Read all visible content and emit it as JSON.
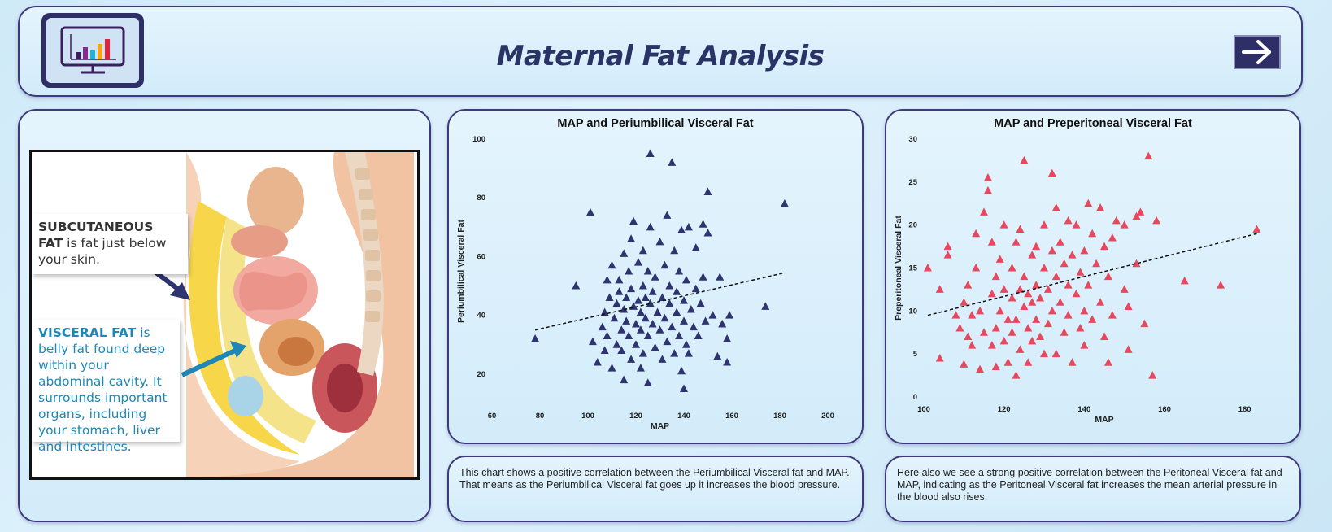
{
  "header": {
    "title": "Maternal Fat Analysis",
    "logo_icon": "monitor-bar-chart-icon",
    "next_icon": "arrow-right-icon"
  },
  "illustration": {
    "callout1_title": "SUBCUTANEOUS FAT",
    "callout1_text": "is fat just below your skin.",
    "callout2_title": "VISCERAL FAT",
    "callout2_text": "is belly fat found deep within your abdominal cavity. It surrounds important organs, including your stomach, liver and intestines."
  },
  "chart_data": [
    {
      "type": "scatter",
      "title": "MAP and Periumbilical Visceral Fat",
      "xlabel": "MAP",
      "ylabel": "Periumbilical Visceral Fat",
      "xlim": [
        60,
        200
      ],
      "ylim": [
        10,
        100
      ],
      "xticks": [
        60,
        80,
        100,
        120,
        140,
        160,
        180,
        200
      ],
      "yticks": [
        20,
        40,
        60,
        80,
        100
      ],
      "marker": "triangle",
      "color": "#2e3470",
      "trendline": {
        "x": [
          78,
          182
        ],
        "y": [
          35,
          54.5
        ]
      },
      "points": [
        [
          78,
          32
        ],
        [
          95,
          50
        ],
        [
          101,
          75
        ],
        [
          102,
          31
        ],
        [
          104,
          24
        ],
        [
          106,
          36
        ],
        [
          107,
          41
        ],
        [
          107,
          28
        ],
        [
          108,
          52
        ],
        [
          108,
          33
        ],
        [
          109,
          46
        ],
        [
          110,
          57
        ],
        [
          110,
          22
        ],
        [
          111,
          39
        ],
        [
          112,
          30
        ],
        [
          112,
          44
        ],
        [
          113,
          48
        ],
        [
          113,
          52
        ],
        [
          114,
          35
        ],
        [
          114,
          28
        ],
        [
          115,
          61
        ],
        [
          115,
          42
        ],
        [
          115,
          18
        ],
        [
          116,
          46
        ],
        [
          116,
          38
        ],
        [
          117,
          33
        ],
        [
          117,
          55
        ],
        [
          118,
          66
        ],
        [
          118,
          49
        ],
        [
          118,
          25
        ],
        [
          119,
          72
        ],
        [
          119,
          43
        ],
        [
          120,
          37
        ],
        [
          120,
          30
        ],
        [
          121,
          58
        ],
        [
          121,
          45
        ],
        [
          122,
          41
        ],
        [
          122,
          35
        ],
        [
          122,
          22
        ],
        [
          123,
          62
        ],
        [
          123,
          50
        ],
        [
          123,
          27
        ],
        [
          124,
          46
        ],
        [
          124,
          39
        ],
        [
          125,
          55
        ],
        [
          125,
          33
        ],
        [
          125,
          17
        ],
        [
          126,
          70
        ],
        [
          126,
          44
        ],
        [
          126,
          95
        ],
        [
          127,
          48
        ],
        [
          127,
          37
        ],
        [
          128,
          29
        ],
        [
          128,
          53
        ],
        [
          129,
          41
        ],
        [
          130,
          65
        ],
        [
          130,
          35
        ],
        [
          131,
          46
        ],
        [
          131,
          25
        ],
        [
          132,
          57
        ],
        [
          132,
          39
        ],
        [
          133,
          74
        ],
        [
          133,
          31
        ],
        [
          134,
          44
        ],
        [
          134,
          50
        ],
        [
          135,
          92
        ],
        [
          135,
          36
        ],
        [
          136,
          62
        ],
        [
          136,
          27
        ],
        [
          137,
          48
        ],
        [
          137,
          41
        ],
        [
          138,
          55
        ],
        [
          138,
          33
        ],
        [
          139,
          69
        ],
        [
          139,
          21
        ],
        [
          140,
          45
        ],
        [
          140,
          38
        ],
        [
          141,
          30
        ],
        [
          141,
          52
        ],
        [
          142,
          70
        ],
        [
          142,
          27
        ],
        [
          143,
          42
        ],
        [
          144,
          36
        ],
        [
          145,
          49
        ],
        [
          145,
          63
        ],
        [
          146,
          33
        ],
        [
          147,
          44
        ],
        [
          148,
          71
        ],
        [
          148,
          53
        ],
        [
          149,
          38
        ],
        [
          150,
          82
        ],
        [
          150,
          68
        ],
        [
          152,
          40
        ],
        [
          154,
          26
        ],
        [
          155,
          53
        ],
        [
          156,
          37
        ],
        [
          158,
          24
        ],
        [
          158,
          32
        ],
        [
          159,
          40
        ],
        [
          174,
          43
        ],
        [
          182,
          78
        ],
        [
          140,
          15
        ]
      ]
    },
    {
      "type": "scatter",
      "title": "MAP and Preperitoneal Visceral Fat",
      "xlabel": "MAP",
      "ylabel": "Preperitoneal Visceral Fat",
      "xlim": [
        100,
        190
      ],
      "ylim": [
        0,
        30
      ],
      "xticks": [
        100,
        120,
        140,
        160,
        180
      ],
      "yticks": [
        0,
        5,
        10,
        15,
        20,
        25,
        30
      ],
      "marker": "triangle",
      "color": "#e8485e",
      "trendline": {
        "x": [
          101,
          183
        ],
        "y": [
          9.5,
          19
        ]
      },
      "points": [
        [
          101,
          15
        ],
        [
          104,
          12.5
        ],
        [
          104,
          4.5
        ],
        [
          106,
          17.5
        ],
        [
          106,
          16.5
        ],
        [
          108,
          9.5
        ],
        [
          109,
          8
        ],
        [
          110,
          11
        ],
        [
          110,
          3.8
        ],
        [
          111,
          7
        ],
        [
          111,
          13
        ],
        [
          112,
          9.5
        ],
        [
          112,
          6
        ],
        [
          113,
          19
        ],
        [
          113,
          15
        ],
        [
          114,
          3.2
        ],
        [
          114,
          10
        ],
        [
          115,
          21.5
        ],
        [
          115,
          7.5
        ],
        [
          116,
          24
        ],
        [
          116,
          25.5
        ],
        [
          117,
          18
        ],
        [
          117,
          12
        ],
        [
          117,
          6
        ],
        [
          118,
          14
        ],
        [
          118,
          8
        ],
        [
          118,
          3.5
        ],
        [
          119,
          16
        ],
        [
          119,
          10
        ],
        [
          120,
          20
        ],
        [
          120,
          12.5
        ],
        [
          120,
          6.5
        ],
        [
          121,
          9
        ],
        [
          121,
          4
        ],
        [
          122,
          11.5
        ],
        [
          122,
          15
        ],
        [
          122,
          7.5
        ],
        [
          123,
          18
        ],
        [
          123,
          9
        ],
        [
          123,
          2.5
        ],
        [
          124,
          12.5
        ],
        [
          124,
          5.5
        ],
        [
          124,
          19.5
        ],
        [
          125,
          14
        ],
        [
          125,
          10.5
        ],
        [
          125,
          27.5
        ],
        [
          126,
          8
        ],
        [
          126,
          4
        ],
        [
          126,
          12
        ],
        [
          127,
          16.5
        ],
        [
          127,
          11
        ],
        [
          127,
          6.5
        ],
        [
          128,
          13
        ],
        [
          128,
          9
        ],
        [
          128,
          17.5
        ],
        [
          129,
          7
        ],
        [
          129,
          11.5
        ],
        [
          130,
          15
        ],
        [
          130,
          5
        ],
        [
          130,
          20
        ],
        [
          131,
          12.5
        ],
        [
          131,
          8.5
        ],
        [
          132,
          17
        ],
        [
          132,
          26
        ],
        [
          132,
          10
        ],
        [
          133,
          14
        ],
        [
          133,
          5
        ],
        [
          133,
          22
        ],
        [
          134,
          11
        ],
        [
          134,
          18
        ],
        [
          135,
          7.5
        ],
        [
          135,
          15.5
        ],
        [
          136,
          20.5
        ],
        [
          136,
          13
        ],
        [
          136,
          9.5
        ],
        [
          137,
          16.5
        ],
        [
          137,
          4
        ],
        [
          138,
          12
        ],
        [
          138,
          20
        ],
        [
          139,
          8
        ],
        [
          139,
          14.5
        ],
        [
          140,
          17
        ],
        [
          140,
          10
        ],
        [
          140,
          6
        ],
        [
          141,
          22.5
        ],
        [
          141,
          13
        ],
        [
          142,
          19
        ],
        [
          142,
          9
        ],
        [
          143,
          15.5
        ],
        [
          144,
          22
        ],
        [
          144,
          11
        ],
        [
          145,
          7
        ],
        [
          145,
          17.5
        ],
        [
          146,
          14
        ],
        [
          146,
          4
        ],
        [
          147,
          18.5
        ],
        [
          147,
          9.5
        ],
        [
          148,
          20.5
        ],
        [
          150,
          20
        ],
        [
          150,
          12.5
        ],
        [
          151,
          10.5
        ],
        [
          151,
          5.5
        ],
        [
          153,
          15.5
        ],
        [
          153,
          21
        ],
        [
          154,
          21.5
        ],
        [
          155,
          8.5
        ],
        [
          156,
          28
        ],
        [
          157,
          2.5
        ],
        [
          158,
          20.5
        ],
        [
          165,
          13.5
        ],
        [
          174,
          13
        ],
        [
          183,
          19.5
        ]
      ]
    }
  ],
  "descriptions": {
    "chart1": "This chart shows a positive correlation between the Periumbilical Visceral fat and MAP. That means as the Periumbilical Visceral fat goes up it increases the blood pressure.",
    "chart2": "Here also we see a strong positive correlation between the Peritoneal Visceral fat and MAP, indicating as the Peritoneal Visceral fat increases the mean arterial pressure in the blood also rises."
  }
}
